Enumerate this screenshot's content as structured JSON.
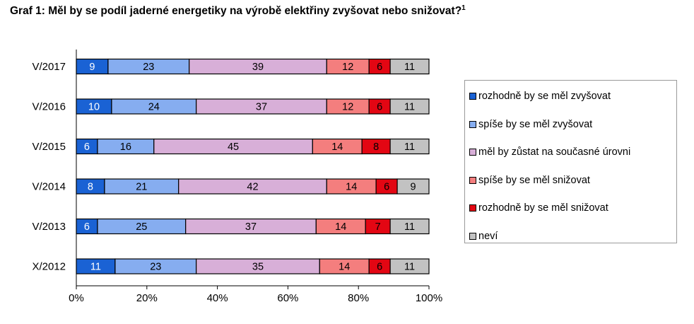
{
  "title": "Graf 1: Měl by se podíl jaderné energetiky na výrobě elektřiny zvyšovat nebo snižovat?",
  "title_footnote": "1",
  "chart_data": {
    "type": "bar",
    "orientation": "horizontal",
    "stacked": "100%",
    "title": "Graf 1: Měl by se podíl jaderné energetiky na výrobě elektřiny zvyšovat nebo snižovat?",
    "categories": [
      "V/2017",
      "V/2016",
      "V/2015",
      "V/2014",
      "V/2013",
      "X/2012"
    ],
    "series": [
      {
        "name": "rozhodně by se měl zvyšovat",
        "color": "#1a62d4",
        "label_color": "#ffffff",
        "values": [
          9,
          10,
          6,
          8,
          6,
          11
        ]
      },
      {
        "name": "spíše by se měl zvyšovat",
        "color": "#86adf0",
        "label_color": "#000000",
        "values": [
          23,
          24,
          16,
          21,
          25,
          23
        ]
      },
      {
        "name": "měl by zůstat na současné úrovni",
        "color": "#d8afd8",
        "label_color": "#000000",
        "values": [
          39,
          37,
          45,
          42,
          37,
          35
        ]
      },
      {
        "name": "spíše by se měl snižovat",
        "color": "#f47e7e",
        "label_color": "#000000",
        "values": [
          12,
          12,
          14,
          14,
          14,
          14
        ]
      },
      {
        "name": "rozhodně by se měl snižovat",
        "color": "#e30613",
        "label_color": "#000000",
        "values": [
          6,
          6,
          8,
          6,
          7,
          6
        ]
      },
      {
        "name": "neví",
        "color": "#c2c2c2",
        "label_color": "#000000",
        "values": [
          11,
          11,
          11,
          9,
          11,
          11
        ]
      }
    ],
    "xlim": [
      0,
      100
    ],
    "x_ticks": [
      "0%",
      "20%",
      "40%",
      "60%",
      "80%",
      "100%"
    ],
    "grid": false,
    "legend_position": "right"
  }
}
